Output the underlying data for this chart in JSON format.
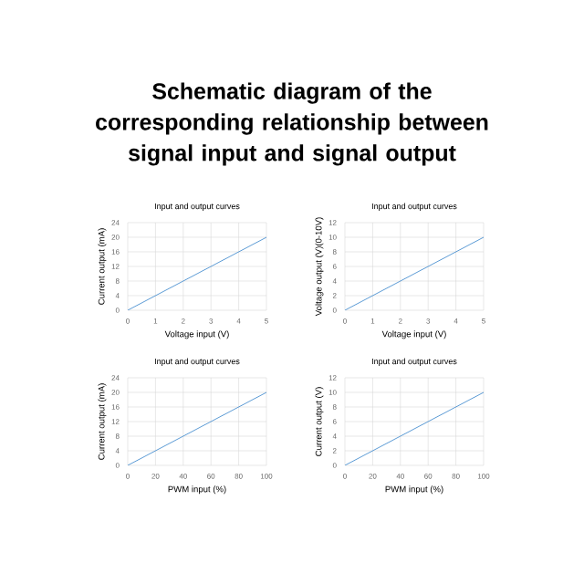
{
  "chart_data": [
    {
      "type": "other",
      "title": "Schematic diagram of the corresponding relationship between signal input and signal output"
    },
    {
      "type": "line",
      "title": "Input and output curves",
      "xlabel": "Voltage input (V)",
      "ylabel": "Current output (mA)",
      "xlim": [
        0,
        5
      ],
      "xticks": [
        0,
        1,
        2,
        3,
        4,
        5
      ],
      "ylim": [
        0,
        24
      ],
      "yticks": [
        0,
        4,
        8,
        12,
        16,
        20,
        24
      ],
      "grid": true,
      "series": [
        {
          "color": "#5b9bd5",
          "x": [
            0,
            5
          ],
          "values": [
            0,
            20
          ]
        }
      ]
    },
    {
      "type": "line",
      "title": "Input and output curves",
      "xlabel": "Voltage input (V)",
      "ylabel": "Voltage output (V)(0-10V)",
      "xlim": [
        0,
        5
      ],
      "xticks": [
        0,
        1,
        2,
        3,
        4,
        5
      ],
      "ylim": [
        0,
        12
      ],
      "yticks": [
        0,
        2,
        4,
        6,
        8,
        10,
        12
      ],
      "grid": true,
      "series": [
        {
          "color": "#5b9bd5",
          "x": [
            0,
            5
          ],
          "values": [
            0,
            10
          ]
        }
      ]
    },
    {
      "type": "line",
      "title": "Input and output curves",
      "xlabel": "PWM input (%)",
      "ylabel": "Current output (mA)",
      "xlim": [
        0,
        100
      ],
      "xticks": [
        0,
        20,
        40,
        60,
        80,
        100
      ],
      "ylim": [
        0,
        24
      ],
      "yticks": [
        0,
        4,
        8,
        12,
        16,
        20,
        24
      ],
      "grid": true,
      "series": [
        {
          "color": "#5b9bd5",
          "x": [
            0,
            100
          ],
          "values": [
            0,
            20
          ]
        }
      ]
    },
    {
      "type": "line",
      "title": "Input and output curves",
      "xlabel": "PWM input (%)",
      "ylabel": "Current output (V)",
      "xlim": [
        0,
        100
      ],
      "xticks": [
        0,
        20,
        40,
        60,
        80,
        100
      ],
      "ylim": [
        0,
        12
      ],
      "yticks": [
        0,
        2,
        4,
        6,
        8,
        10,
        12
      ],
      "grid": true,
      "series": [
        {
          "color": "#5b9bd5",
          "x": [
            0,
            100
          ],
          "values": [
            0,
            10
          ]
        }
      ]
    }
  ]
}
